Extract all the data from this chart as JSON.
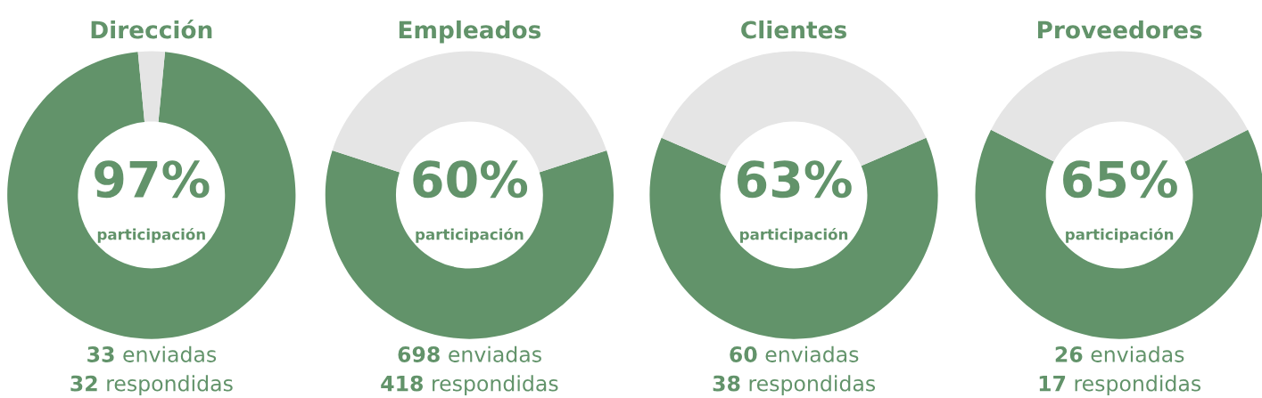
{
  "chart_data": [
    {
      "type": "donut",
      "title": "Dirección",
      "categories": [
        null,
        null
      ],
      "values": [
        97,
        3
      ],
      "colors": [
        "#62936a",
        "#e5e5e5"
      ],
      "annotations": [
        "97%",
        "participación",
        "33 enviadas",
        "32 respondidas"
      ]
    },
    {
      "type": "donut",
      "title": "Empleados",
      "categories": [
        null,
        null
      ],
      "values": [
        60,
        40
      ],
      "colors": [
        "#62936a",
        "#e5e5e5"
      ],
      "annotations": [
        "60%",
        "participación",
        "698 enviadas",
        "418 respondidas"
      ]
    },
    {
      "type": "donut",
      "title": "Clientes",
      "categories": [
        null,
        null
      ],
      "values": [
        63,
        37
      ],
      "colors": [
        "#62936a",
        "#e5e5e5"
      ],
      "annotations": [
        "63%",
        "participación",
        "60 enviadas",
        "38 respondidas"
      ]
    },
    {
      "type": "donut",
      "title": "Proveedores",
      "categories": [
        null,
        null
      ],
      "values": [
        65,
        35
      ],
      "colors": [
        "#62936a",
        "#e5e5e5"
      ],
      "annotations": [
        "65%",
        "participación",
        "26 enviadas",
        "17 respondidas"
      ]
    }
  ]
}
